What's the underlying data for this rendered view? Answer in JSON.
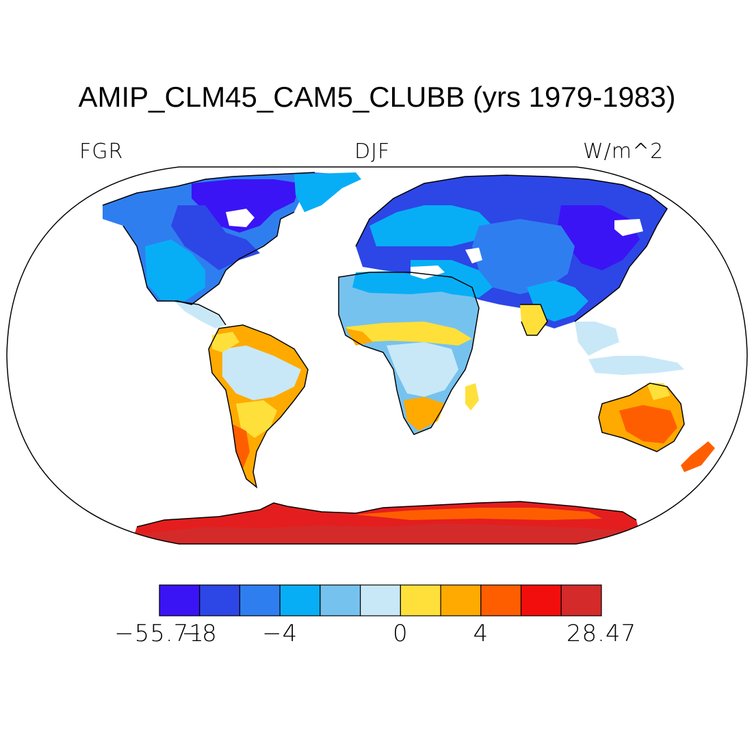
{
  "title": "AMIP_CLM45_CAM5_CLUBB (yrs 1979-1983)",
  "variable_label": "FGR",
  "season_label": "DJF",
  "units_label": "W/m^2",
  "map": {
    "projection": "Robinson",
    "land_boundaries": true,
    "ocean_fill": "#ffffff"
  },
  "colorbar": {
    "colors": [
      "#3a14f5",
      "#2d46e6",
      "#2f7ef0",
      "#08aef5",
      "#76c2ee",
      "#c8e8f7",
      "#ffe03a",
      "#ffaa00",
      "#ff5e00",
      "#f30e0e",
      "#d42a2a"
    ],
    "tick_labels": [
      "−55.71",
      "−8",
      "−4",
      "0",
      "4",
      "28.47"
    ]
  }
}
